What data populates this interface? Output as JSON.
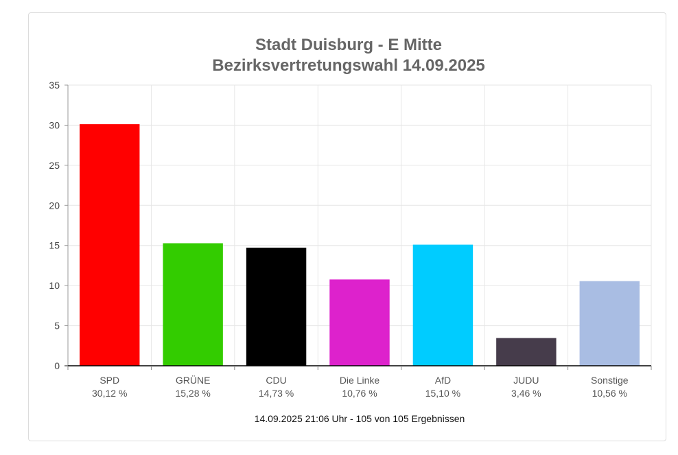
{
  "chart_data": {
    "type": "bar",
    "title": "Stadt Duisburg - E Mitte",
    "subtitle": "Bezirksvertretungswahl 14.09.2025",
    "categories": [
      "SPD",
      "GRÜNE",
      "CDU",
      "Die Linke",
      "AfD",
      "JUDU",
      "Sonstige"
    ],
    "values": [
      30.12,
      15.28,
      14.73,
      10.76,
      15.1,
      3.46,
      10.56
    ],
    "value_labels": [
      "30,12 %",
      "15,28 %",
      "14,73 %",
      "10,76 %",
      "15,10 %",
      "3,46 %",
      "10,56 %"
    ],
    "colors": [
      "#ff0000",
      "#33cc00",
      "#000000",
      "#dd22cc",
      "#00ccff",
      "#463c4b",
      "#a9bde3"
    ],
    "yticks": [
      "0",
      "5",
      "10",
      "15",
      "20",
      "25",
      "30",
      "35"
    ],
    "ylim": [
      0,
      35
    ],
    "grid": true,
    "xlabel": "",
    "ylabel": "",
    "footer": "14.09.2025 21:06 Uhr - 105 von 105 Ergebnissen"
  }
}
